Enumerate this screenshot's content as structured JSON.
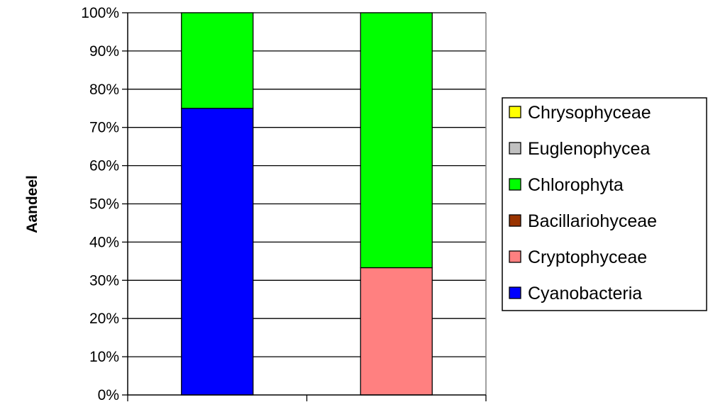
{
  "chart_data": {
    "type": "bar",
    "stacked": true,
    "percent_stacked": true,
    "categories": [
      "",
      ""
    ],
    "ylabel": "Aandeel",
    "xlabel": "",
    "ylim": [
      0,
      100
    ],
    "y_ticks": [
      "0%",
      "10%",
      "20%",
      "30%",
      "40%",
      "50%",
      "60%",
      "70%",
      "80%",
      "90%",
      "100%"
    ],
    "grid": true,
    "legend_position": "right",
    "legend_order": [
      "Chrysophyceae",
      "Euglenophycea",
      "Chlorophyta",
      "Bacillariohyceae",
      "Cryptophyceae",
      "Cyanobacteria"
    ],
    "series": [
      {
        "name": "Cyanobacteria",
        "color": "#0000FF",
        "values": [
          75,
          0
        ]
      },
      {
        "name": "Cryptophyceae",
        "color": "#FF8080",
        "values": [
          0,
          33.3
        ]
      },
      {
        "name": "Bacillariohyceae",
        "color": "#993300",
        "values": [
          0,
          0
        ]
      },
      {
        "name": "Chlorophyta",
        "color": "#00FF00",
        "values": [
          25,
          66.7
        ]
      },
      {
        "name": "Euglenophycea",
        "color": "#C0C0C0",
        "values": [
          0,
          0
        ]
      },
      {
        "name": "Chrysophyceae",
        "color": "#FFFF00",
        "values": [
          0,
          0
        ]
      }
    ]
  }
}
